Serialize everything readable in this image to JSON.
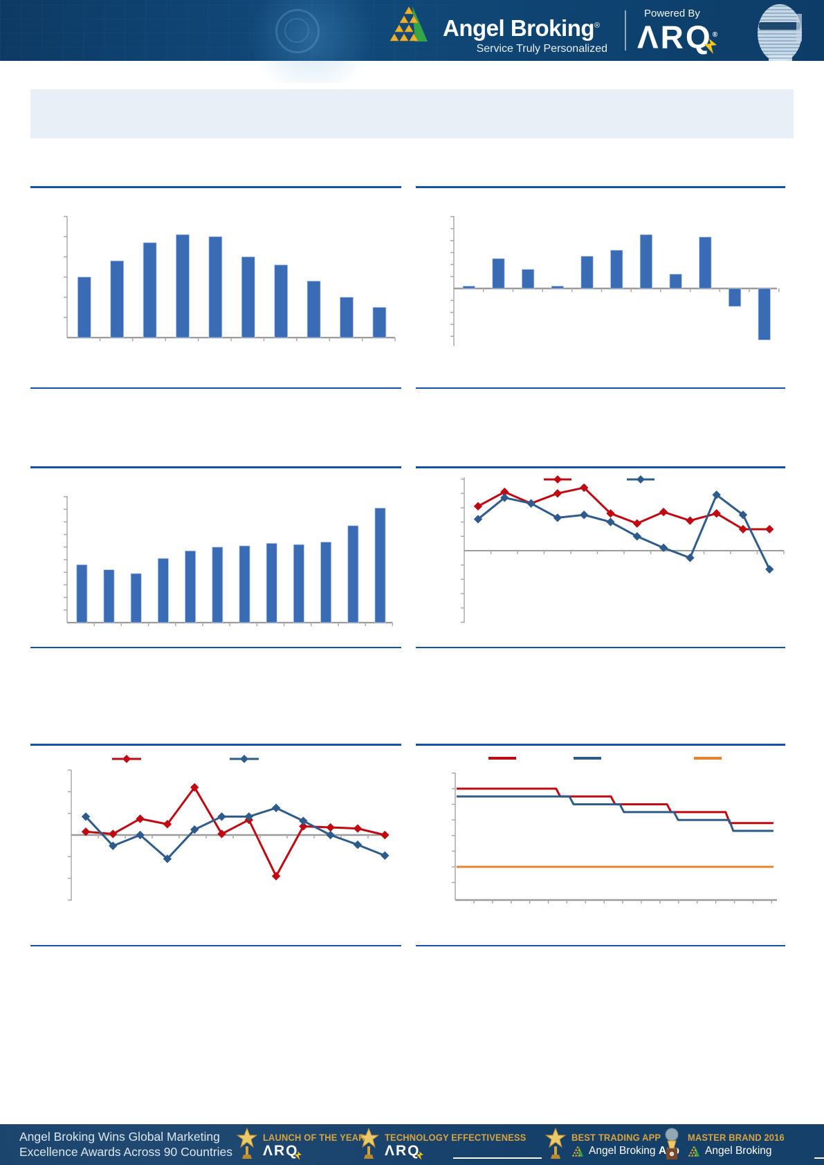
{
  "header": {
    "brand": "Angel Broking",
    "brand_reg": "®",
    "tagline": "Service Truly Personalized",
    "powered_by": "Powered By",
    "arq": "ΛRQ",
    "arq_reg": "®"
  },
  "title_box": {
    "text": ""
  },
  "colors": {
    "bar_blue": "#3a6cb5",
    "line_red": "#c00812",
    "line_dark_blue": "#2d5b8c",
    "line_orange": "#e8802e",
    "axis_gray": "#a9a9a9",
    "section_rule_blue": "#1153a5",
    "banner_navy": "#0d3c67",
    "footer_navy": "#15406a",
    "award_gold": "#d8a43e",
    "title_box_bg": "#e9eff7",
    "logo_gold": "#f0b12b",
    "logo_green": "#35a548",
    "bolt_yellow": "#f5c518"
  },
  "icons": {
    "angel_logo": "triangle-pyramid",
    "arq_bolt": "lightning-bolt",
    "star_trophy": "gold-star-trophy",
    "globe_trophy": "globe-trophy"
  },
  "chart_data": [
    {
      "id": "exhibit-1-top-left",
      "type": "bar",
      "values": [
        3.0,
        3.8,
        4.7,
        5.1,
        5.0,
        4.0,
        3.6,
        2.8,
        2.0,
        1.5
      ],
      "ylim": [
        0,
        6
      ],
      "grid": false,
      "tick_labels_visible": false,
      "legend_position": "none"
    },
    {
      "id": "exhibit-2-top-right",
      "type": "bar",
      "values": [
        0.2,
        2.5,
        1.6,
        0.2,
        2.7,
        3.2,
        4.5,
        1.2,
        4.3,
        -1.5,
        -4.3
      ],
      "ylim": [
        -4.8,
        6.1
      ],
      "grid": false,
      "tick_labels_visible": false,
      "legend_position": "none"
    },
    {
      "id": "exhibit-3-mid-left",
      "type": "bar",
      "values": [
        4.6,
        4.2,
        3.9,
        5.1,
        5.7,
        6.0,
        6.1,
        6.3,
        6.2,
        6.4,
        7.7,
        9.1
      ],
      "ylim": [
        0,
        10
      ],
      "grid": false,
      "tick_labels_visible": false,
      "legend_position": "none"
    },
    {
      "id": "exhibit-4-mid-right",
      "type": "line",
      "series": [
        {
          "name": "red-series",
          "color": "#c00812",
          "values": [
            3.1,
            4.1,
            3.3,
            4.0,
            4.4,
            2.6,
            1.9,
            2.7,
            2.1,
            2.6,
            1.5,
            1.5
          ]
        },
        {
          "name": "blue-series",
          "color": "#2d5b8c",
          "values": [
            2.2,
            3.7,
            3.3,
            2.3,
            2.5,
            2.0,
            1.0,
            0.2,
            -0.5,
            3.9,
            2.5,
            -1.3
          ]
        }
      ],
      "ylim": [
        -5.1,
        5.1
      ],
      "grid": false,
      "tick_labels_visible": false,
      "legend_position": "top"
    },
    {
      "id": "exhibit-5-bottom-left",
      "type": "line",
      "series": [
        {
          "name": "red-series",
          "color": "#c00812",
          "values": [
            0.15,
            0.05,
            0.75,
            0.5,
            2.2,
            0.05,
            0.7,
            -1.9,
            0.4,
            0.35,
            0.3,
            0.0
          ]
        },
        {
          "name": "blue-series",
          "color": "#2d5b8c",
          "values": [
            0.85,
            -0.5,
            0.0,
            -1.1,
            0.25,
            0.85,
            0.85,
            1.25,
            0.65,
            0.0,
            -0.45,
            -0.95
          ]
        }
      ],
      "ylim": [
        -3,
        3
      ],
      "grid": false,
      "tick_labels_visible": false,
      "legend_position": "top"
    },
    {
      "id": "exhibit-6-bottom-right",
      "type": "step-line",
      "series": [
        {
          "name": "red-band",
          "color": "#c00812",
          "points": [
            [
              0,
              5.0
            ],
            [
              0.314,
              5.0
            ],
            [
              0.327,
              4.5
            ],
            [
              0.487,
              4.5
            ],
            [
              0.5,
              4.0
            ],
            [
              0.664,
              4.0
            ],
            [
              0.677,
              3.5
            ],
            [
              0.849,
              3.5
            ],
            [
              0.862,
              2.8
            ],
            [
              1,
              2.8
            ]
          ]
        },
        {
          "name": "blue-band",
          "color": "#2d5b8c",
          "points": [
            [
              0,
              4.5
            ],
            [
              0.356,
              4.5
            ],
            [
              0.369,
              4.0
            ],
            [
              0.515,
              4.0
            ],
            [
              0.528,
              3.5
            ],
            [
              0.686,
              3.5
            ],
            [
              0.699,
              3.0
            ],
            [
              0.86,
              3.0
            ],
            [
              0.873,
              2.3
            ],
            [
              1,
              2.3
            ]
          ]
        },
        {
          "name": "orange-line",
          "color": "#e8802e",
          "points": [
            [
              0,
              0
            ],
            [
              1,
              0
            ]
          ]
        }
      ],
      "ylim": [
        -2.1,
        6
      ],
      "grid": false,
      "tick_labels_visible": false,
      "legend_position": "top"
    }
  ],
  "footer": {
    "headline_line1": "Angel Broking Wins Global Marketing",
    "headline_line2": "Excellence Awards Across 90 Countries",
    "awards": [
      {
        "title": "LAUNCH OF THE YEAR",
        "subtitle": "ΛRQ",
        "icon": "star_trophy"
      },
      {
        "title": "TECHNOLOGY EFFECTIVENESS",
        "subtitle": "ΛRQ",
        "icon": "star_trophy"
      },
      {
        "title": "BEST TRADING APP",
        "subtitle": "Angel Broking ",
        "subtitle_bold": "App",
        "icon": "star_trophy"
      },
      {
        "title": "MASTER BRAND 2016",
        "subtitle": "Angel Broking",
        "subtitle_bold": "",
        "icon": "globe_trophy"
      }
    ]
  }
}
